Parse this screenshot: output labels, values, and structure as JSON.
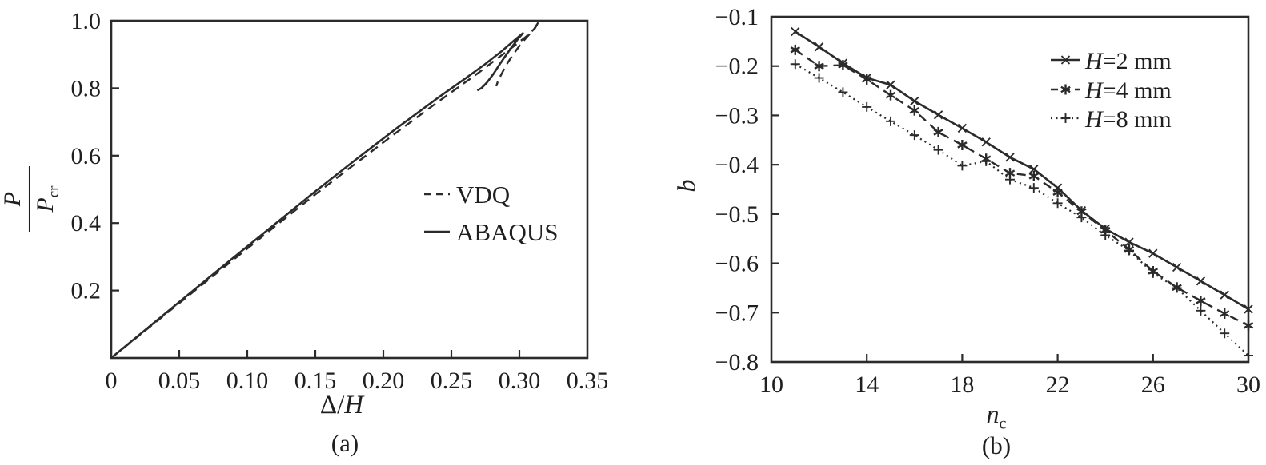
{
  "figure_background": "#ffffff",
  "line_color": "#2b2b2b",
  "text_color": "#1f1f1f",
  "chart_data": [
    {
      "type": "line",
      "panel": "a",
      "caption": "(a)",
      "xlabel": "Δ/H",
      "xlabel_parts": {
        "pre": "Δ/",
        "italic": "H"
      },
      "ylabel": "P/P_cr",
      "ylabel_parts": {
        "num": "P",
        "den": "P",
        "den_sub": "cr"
      },
      "xlim": [
        0,
        0.35
      ],
      "ylim": [
        0,
        1.0
      ],
      "grid": false,
      "legend_position": "inside-right-middle",
      "xticks": {
        "values": [
          0,
          0.05,
          0.1,
          0.15,
          0.2,
          0.25,
          0.3,
          0.35
        ],
        "labels": [
          "0",
          "0.05",
          "0.10",
          "0.15",
          "0.20",
          "0.25",
          "0.30",
          "0.35"
        ]
      },
      "yticks": {
        "values": [
          0.2,
          0.4,
          0.6,
          0.8,
          1.0
        ],
        "labels": [
          "0.2",
          "0.4",
          "0.6",
          "0.8",
          "1.0"
        ]
      },
      "series": [
        {
          "name": "VDQ",
          "style": "dashed",
          "marker": "none",
          "points": [
            [
              0,
              0
            ],
            [
              0.03,
              0.0975
            ],
            [
              0.06,
              0.195
            ],
            [
              0.09,
              0.292
            ],
            [
              0.12,
              0.389
            ],
            [
              0.15,
              0.485
            ],
            [
              0.18,
              0.578
            ],
            [
              0.21,
              0.67
            ],
            [
              0.24,
              0.759
            ],
            [
              0.27,
              0.846
            ],
            [
              0.285,
              0.892
            ],
            [
              0.295,
              0.922
            ],
            [
              0.305,
              0.953
            ],
            [
              0.3115,
              0.978
            ],
            [
              0.3145,
              0.999
            ],
            [
              0.3105,
              0.974
            ],
            [
              0.3055,
              0.952
            ],
            [
              0.3005,
              0.928
            ],
            [
              0.2955,
              0.901
            ],
            [
              0.2905,
              0.87
            ],
            [
              0.2865,
              0.839
            ],
            [
              0.284,
              0.818
            ],
            [
              0.283,
              0.806
            ]
          ]
        },
        {
          "name": "ABAQUS",
          "style": "solid",
          "marker": "none",
          "points": [
            [
              0,
              0
            ],
            [
              0.03,
              0.0995
            ],
            [
              0.06,
              0.199
            ],
            [
              0.09,
              0.298
            ],
            [
              0.12,
              0.396
            ],
            [
              0.15,
              0.494
            ],
            [
              0.18,
              0.589
            ],
            [
              0.21,
              0.682
            ],
            [
              0.24,
              0.771
            ],
            [
              0.26,
              0.828
            ],
            [
              0.275,
              0.872
            ],
            [
              0.287,
              0.91
            ],
            [
              0.296,
              0.941
            ],
            [
              0.301,
              0.958
            ],
            [
              0.3025,
              0.963
            ],
            [
              0.2995,
              0.949
            ],
            [
              0.2955,
              0.928
            ],
            [
              0.291,
              0.903
            ],
            [
              0.286,
              0.874
            ],
            [
              0.281,
              0.843
            ],
            [
              0.276,
              0.816
            ],
            [
              0.272,
              0.8
            ],
            [
              0.269,
              0.7935
            ]
          ]
        }
      ]
    },
    {
      "type": "line",
      "panel": "b",
      "caption": "(b)",
      "xlabel": "n_c",
      "xlabel_parts": {
        "italic": "n",
        "sub": "c"
      },
      "ylabel": "b",
      "xlim": [
        10,
        30
      ],
      "ylim": [
        -0.8,
        -0.1
      ],
      "grid": false,
      "legend_position": "inside-top-right",
      "xticks": {
        "values": [
          10,
          14,
          18,
          22,
          26,
          30
        ],
        "labels": [
          "10",
          "14",
          "18",
          "22",
          "26",
          "30"
        ]
      },
      "yticks": {
        "values": [
          -0.1,
          -0.2,
          -0.3,
          -0.4,
          -0.5,
          -0.6,
          -0.7,
          -0.8
        ],
        "labels": [
          "−0.1",
          "−0.2",
          "−0.3",
          "−0.4",
          "−0.5",
          "−0.6",
          "−0.7",
          "−0.8"
        ]
      },
      "x": [
        11,
        12,
        13,
        14,
        15,
        16,
        17,
        18,
        19,
        20,
        21,
        22,
        23,
        24,
        25,
        26,
        27,
        28,
        29,
        30
      ],
      "series": [
        {
          "name": "H=2 mm",
          "name_parts": {
            "italic": "H",
            "rest": "=2 mm"
          },
          "style": "solid",
          "marker": "x",
          "values": [
            -0.13,
            -0.161,
            -0.194,
            -0.224,
            -0.238,
            -0.271,
            -0.299,
            -0.326,
            -0.354,
            -0.385,
            -0.409,
            -0.447,
            -0.493,
            -0.53,
            -0.557,
            -0.58,
            -0.608,
            -0.636,
            -0.664,
            -0.693
          ]
        },
        {
          "name": "H=4 mm",
          "name_parts": {
            "italic": "H",
            "rest": "=4 mm"
          },
          "style": "dashed",
          "marker": "asterisk",
          "values": [
            -0.167,
            -0.2,
            -0.198,
            -0.227,
            -0.259,
            -0.29,
            -0.334,
            -0.36,
            -0.388,
            -0.417,
            -0.423,
            -0.456,
            -0.495,
            -0.533,
            -0.572,
            -0.616,
            -0.649,
            -0.676,
            -0.702,
            -0.726
          ]
        },
        {
          "name": "H=8 mm",
          "name_parts": {
            "italic": "H",
            "rest": "=8 mm"
          },
          "style": "dotted",
          "marker": "plus",
          "values": [
            -0.196,
            -0.224,
            -0.253,
            -0.283,
            -0.312,
            -0.34,
            -0.37,
            -0.402,
            -0.393,
            -0.43,
            -0.447,
            -0.478,
            -0.507,
            -0.543,
            -0.574,
            -0.62,
            -0.65,
            -0.696,
            -0.742,
            -0.787
          ]
        }
      ]
    }
  ]
}
